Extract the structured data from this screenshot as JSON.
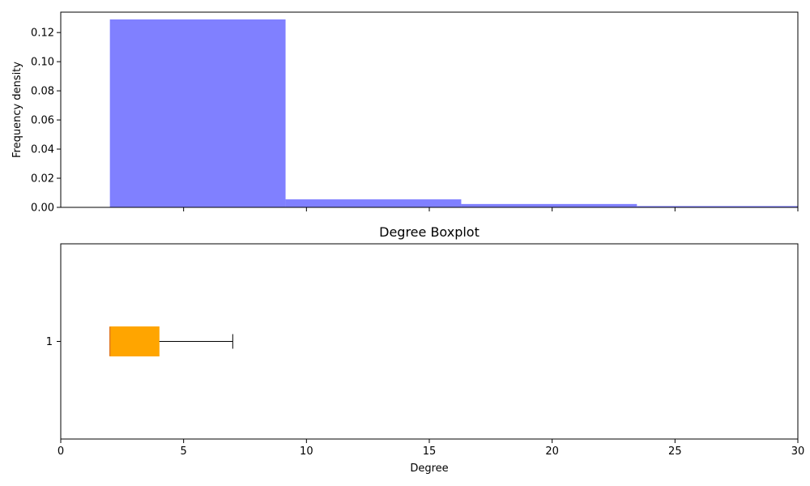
{
  "colors": {
    "hist_fill": "#8080ff",
    "box_fill": "#ffa500",
    "median_line": "#e07a2a",
    "whisker": "#000000",
    "axis": "#000000"
  },
  "chart_data": [
    {
      "type": "histogram",
      "title": "",
      "xlabel": "",
      "ylabel": "Frequency density",
      "xlim": [
        0,
        30
      ],
      "ylim": [
        0,
        0.134
      ],
      "bins": [
        {
          "x0": 2.0,
          "x1": 9.15,
          "value": 0.129
        },
        {
          "x0": 9.15,
          "x1": 16.3,
          "value": 0.0055
        },
        {
          "x0": 16.3,
          "x1": 23.45,
          "value": 0.0023
        },
        {
          "x0": 23.45,
          "x1": 30.6,
          "value": 0.0009
        }
      ],
      "xticks": [
        5,
        10,
        15,
        20,
        25,
        30
      ],
      "yticks": [
        0.0,
        0.02,
        0.04,
        0.06,
        0.08,
        0.1,
        0.12
      ],
      "ytick_labels": [
        "0.00",
        "0.02",
        "0.04",
        "0.06",
        "0.08",
        "0.10",
        "0.12"
      ],
      "grid": false
    },
    {
      "type": "boxplot",
      "orientation": "horizontal",
      "title": "Degree Boxplot",
      "xlabel": "Degree",
      "ylabel": "",
      "xlim": [
        0,
        30
      ],
      "xticks": [
        0,
        5,
        10,
        15,
        20,
        25,
        30
      ],
      "xtick_labels": [
        "0",
        "5",
        "10",
        "15",
        "20",
        "25",
        "30"
      ],
      "ytick_labels": [
        "1"
      ],
      "boxes": [
        {
          "label": "1",
          "whislo": 2,
          "q1": 2,
          "med": 2,
          "q3": 4,
          "whishi": 7
        }
      ],
      "grid": false
    }
  ]
}
